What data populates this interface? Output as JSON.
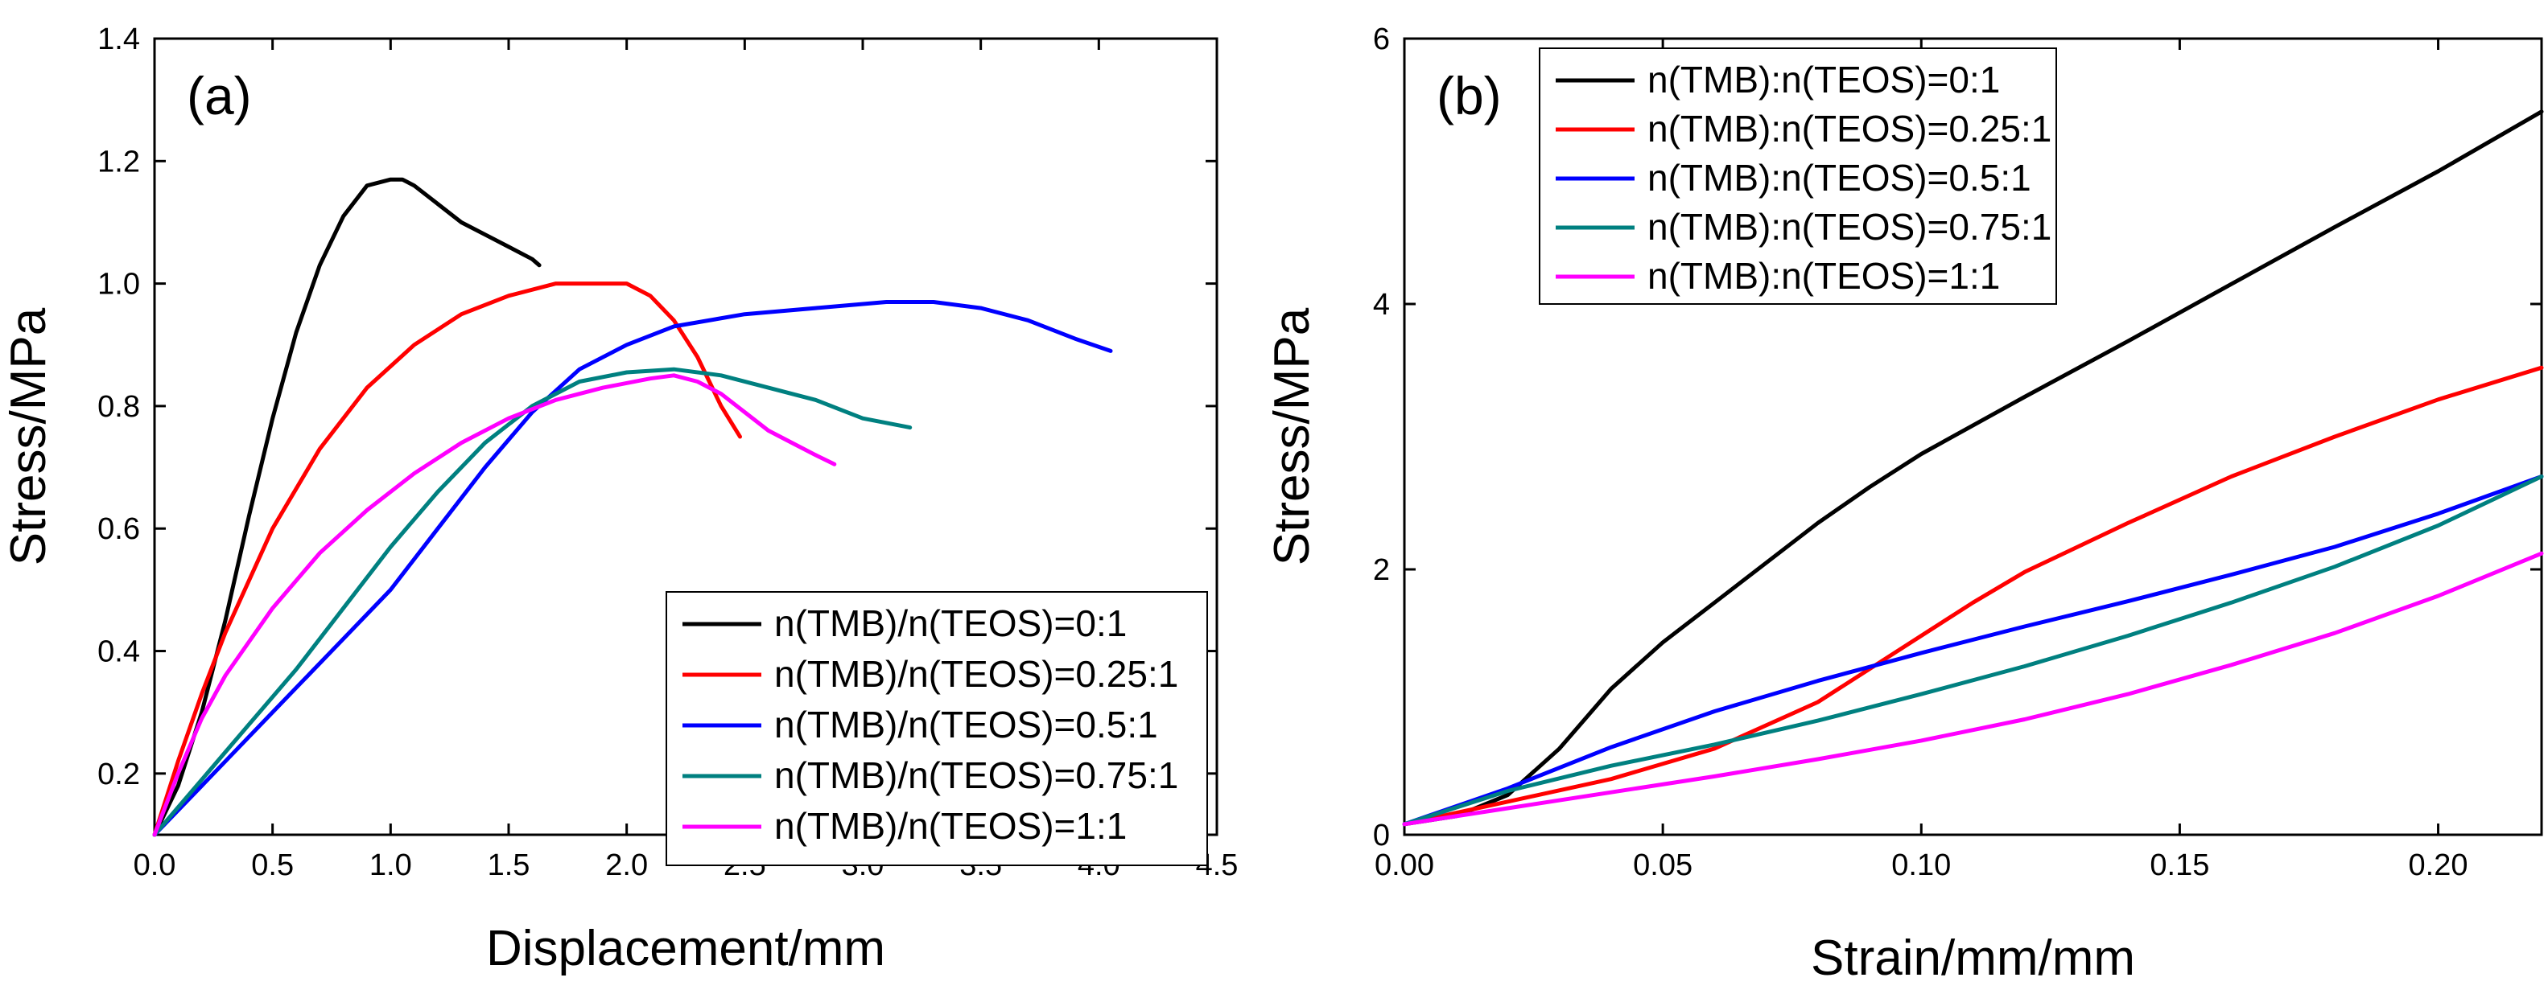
{
  "chart_data": [
    {
      "type": "line",
      "panel_label": "(a)",
      "title": "",
      "xlabel": "Displacement/mm",
      "ylabel": "Stress/MPa",
      "xlim": [
        0,
        4.5
      ],
      "ylim": [
        0.1,
        1.4
      ],
      "xticks": [
        "0.0",
        "0.5",
        "1.0",
        "1.5",
        "2.0",
        "2.5",
        "3.0",
        "3.5",
        "4.0",
        "4.5"
      ],
      "yticks": [
        "0.2",
        "0.4",
        "0.6",
        "0.8",
        "1.0",
        "1.2",
        "1.4"
      ],
      "legend_position": "bottom-right",
      "series": [
        {
          "name": "n(TMB)/n(TEOS)=0:1",
          "color": "#000000",
          "x": [
            0,
            0.1,
            0.2,
            0.3,
            0.4,
            0.5,
            0.6,
            0.7,
            0.8,
            0.9,
            1.0,
            1.05,
            1.1,
            1.2,
            1.3,
            1.4,
            1.5,
            1.6,
            1.63
          ],
          "y": [
            0.1,
            0.18,
            0.3,
            0.45,
            0.62,
            0.78,
            0.92,
            1.03,
            1.11,
            1.16,
            1.17,
            1.17,
            1.16,
            1.13,
            1.1,
            1.08,
            1.06,
            1.04,
            1.03
          ]
        },
        {
          "name": "n(TMB)/n(TEOS)=0.25:1",
          "color": "#ff0000",
          "x": [
            0,
            0.1,
            0.2,
            0.3,
            0.5,
            0.7,
            0.9,
            1.1,
            1.3,
            1.5,
            1.7,
            1.8,
            1.9,
            2.0,
            2.1,
            2.2,
            2.3,
            2.4,
            2.48
          ],
          "y": [
            0.1,
            0.22,
            0.33,
            0.43,
            0.6,
            0.73,
            0.83,
            0.9,
            0.95,
            0.98,
            1.0,
            1.0,
            1.0,
            1.0,
            0.98,
            0.94,
            0.88,
            0.8,
            0.75
          ]
        },
        {
          "name": "n(TMB)/n(TEOS)=0.5:1",
          "color": "#0000ff",
          "x": [
            0,
            0.2,
            0.4,
            0.6,
            0.8,
            1.0,
            1.2,
            1.4,
            1.6,
            1.8,
            2.0,
            2.2,
            2.5,
            2.8,
            3.1,
            3.3,
            3.5,
            3.7,
            3.9,
            4.05
          ],
          "y": [
            0.1,
            0.18,
            0.26,
            0.34,
            0.42,
            0.5,
            0.6,
            0.7,
            0.79,
            0.86,
            0.9,
            0.93,
            0.95,
            0.96,
            0.97,
            0.97,
            0.96,
            0.94,
            0.91,
            0.89
          ]
        },
        {
          "name": "n(TMB)/n(TEOS)=0.75:1",
          "color": "#008080",
          "x": [
            0,
            0.2,
            0.4,
            0.6,
            0.8,
            1.0,
            1.2,
            1.4,
            1.6,
            1.8,
            2.0,
            2.2,
            2.4,
            2.6,
            2.8,
            3.0,
            3.2
          ],
          "y": [
            0.1,
            0.19,
            0.28,
            0.37,
            0.47,
            0.57,
            0.66,
            0.74,
            0.8,
            0.84,
            0.855,
            0.86,
            0.85,
            0.83,
            0.81,
            0.78,
            0.765
          ]
        },
        {
          "name": "n(TMB)/n(TEOS)=1:1",
          "color": "#ff00ff",
          "x": [
            0,
            0.1,
            0.2,
            0.3,
            0.5,
            0.7,
            0.9,
            1.1,
            1.3,
            1.5,
            1.7,
            1.9,
            2.1,
            2.2,
            2.3,
            2.4,
            2.5,
            2.6,
            2.7,
            2.8,
            2.88
          ],
          "y": [
            0.1,
            0.2,
            0.29,
            0.36,
            0.47,
            0.56,
            0.63,
            0.69,
            0.74,
            0.78,
            0.81,
            0.83,
            0.845,
            0.85,
            0.84,
            0.82,
            0.79,
            0.76,
            0.74,
            0.72,
            0.705
          ]
        }
      ]
    },
    {
      "type": "line",
      "panel_label": "(b)",
      "title": "",
      "xlabel": "Strain/mm/mm",
      "ylabel": "Stress/MPa",
      "xlim": [
        0,
        0.22
      ],
      "ylim": [
        0,
        6
      ],
      "xticks": [
        "0.00",
        "0.05",
        "0.10",
        "0.15",
        "0.20"
      ],
      "yticks": [
        "0",
        "2",
        "4",
        "6"
      ],
      "legend_position": "top-left",
      "series": [
        {
          "name": "n(TMB):n(TEOS)=0:1",
          "color": "#000000",
          "x": [
            0,
            0.01,
            0.02,
            0.03,
            0.04,
            0.05,
            0.06,
            0.07,
            0.08,
            0.09,
            0.1,
            0.12,
            0.14,
            0.16,
            0.18,
            0.2,
            0.22
          ],
          "y": [
            0.08,
            0.14,
            0.3,
            0.65,
            1.1,
            1.45,
            1.75,
            2.05,
            2.35,
            2.62,
            2.87,
            3.3,
            3.72,
            4.15,
            4.58,
            5.0,
            5.45
          ]
        },
        {
          "name": "n(TMB):n(TEOS)=0.25:1",
          "color": "#ff0000",
          "x": [
            0,
            0.02,
            0.04,
            0.06,
            0.08,
            0.1,
            0.11,
            0.12,
            0.14,
            0.16,
            0.18,
            0.2,
            0.22
          ],
          "y": [
            0.08,
            0.25,
            0.42,
            0.65,
            1.0,
            1.5,
            1.75,
            1.98,
            2.35,
            2.7,
            3.0,
            3.28,
            3.52
          ]
        },
        {
          "name": "n(TMB):n(TEOS)=0.5:1",
          "color": "#0000ff",
          "x": [
            0,
            0.02,
            0.04,
            0.06,
            0.08,
            0.1,
            0.12,
            0.14,
            0.16,
            0.18,
            0.2,
            0.22
          ],
          "y": [
            0.08,
            0.35,
            0.66,
            0.93,
            1.16,
            1.37,
            1.57,
            1.76,
            1.96,
            2.17,
            2.42,
            2.7
          ]
        },
        {
          "name": "n(TMB):n(TEOS)=0.75:1",
          "color": "#008080",
          "x": [
            0,
            0.02,
            0.04,
            0.06,
            0.08,
            0.1,
            0.12,
            0.14,
            0.16,
            0.18,
            0.2,
            0.22
          ],
          "y": [
            0.08,
            0.33,
            0.52,
            0.68,
            0.86,
            1.06,
            1.27,
            1.5,
            1.75,
            2.02,
            2.33,
            2.7
          ]
        },
        {
          "name": "n(TMB):n(TEOS)=1:1",
          "color": "#ff00ff",
          "x": [
            0,
            0.02,
            0.04,
            0.06,
            0.08,
            0.1,
            0.12,
            0.14,
            0.16,
            0.18,
            0.2,
            0.22
          ],
          "y": [
            0.08,
            0.2,
            0.32,
            0.44,
            0.57,
            0.71,
            0.87,
            1.06,
            1.28,
            1.52,
            1.8,
            2.12
          ]
        }
      ]
    }
  ]
}
